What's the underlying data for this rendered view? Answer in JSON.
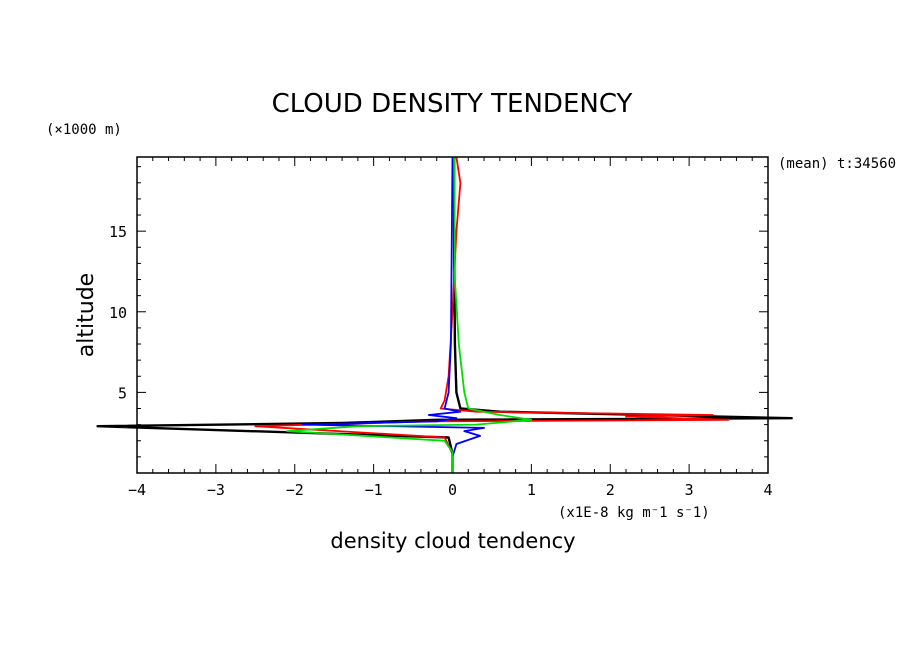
{
  "chart_data": {
    "type": "line",
    "title": "CLOUD DENSITY TENDENCY",
    "ylabel": "altitude",
    "yunit": "(×1000 m)",
    "xlabel": "density cloud tendency",
    "xunit": "(x1E-8 kg m⁻1 s⁻1)",
    "annotation": "(mean) t:34560",
    "xlim": [
      -4,
      4
    ],
    "ylim": [
      0,
      19.6
    ],
    "xticks": [
      "−4",
      "−3",
      "−2",
      "−1",
      "0",
      "1",
      "2",
      "3",
      "4"
    ],
    "yticks": [
      "5",
      "10",
      "15"
    ],
    "grid": false,
    "series": [
      {
        "color": "#000000",
        "points": [
          [
            0,
            0
          ],
          [
            0,
            1.2
          ],
          [
            -0.05,
            2.2
          ],
          [
            -4.5,
            2.9
          ],
          [
            -1.4,
            3.1
          ],
          [
            -0.2,
            3.3
          ],
          [
            4.3,
            3.4
          ],
          [
            0.6,
            3.8
          ],
          [
            0.1,
            4.0
          ],
          [
            0.05,
            5.0
          ],
          [
            0.03,
            8.0
          ],
          [
            0.02,
            15.0
          ],
          [
            0.02,
            19.6
          ]
        ]
      },
      {
        "color": "#ff0000",
        "points": [
          [
            0,
            0
          ],
          [
            0,
            1.2
          ],
          [
            -0.1,
            2.2
          ],
          [
            -2.5,
            2.9
          ],
          [
            -1.0,
            3.1
          ],
          [
            -0.3,
            3.2
          ],
          [
            3.5,
            3.3
          ],
          [
            2.2,
            3.5
          ],
          [
            3.3,
            3.6
          ],
          [
            0.3,
            3.8
          ],
          [
            -0.15,
            4.0
          ],
          [
            -0.1,
            4.5
          ],
          [
            -0.05,
            6.0
          ],
          [
            0.0,
            10.0
          ],
          [
            0.05,
            15.0
          ],
          [
            0.1,
            18.0
          ],
          [
            0.05,
            19.6
          ]
        ]
      },
      {
        "color": "#0000ff",
        "points": [
          [
            0,
            0
          ],
          [
            0,
            1.0
          ],
          [
            0.05,
            1.8
          ],
          [
            0.35,
            2.3
          ],
          [
            0.15,
            2.6
          ],
          [
            0.4,
            2.8
          ],
          [
            -1.9,
            3.0
          ],
          [
            -0.2,
            3.2
          ],
          [
            0.05,
            3.4
          ],
          [
            -0.3,
            3.6
          ],
          [
            0.1,
            3.8
          ],
          [
            -0.1,
            4.0
          ],
          [
            -0.05,
            5.0
          ],
          [
            -0.02,
            8.0
          ],
          [
            0.0,
            19.6
          ]
        ]
      },
      {
        "color": "#00dd00",
        "points": [
          [
            0,
            0
          ],
          [
            0,
            1.3
          ],
          [
            -0.1,
            2.0
          ],
          [
            -2.1,
            2.6
          ],
          [
            -1.2,
            2.9
          ],
          [
            0.3,
            3.0
          ],
          [
            1.0,
            3.3
          ],
          [
            0.6,
            3.6
          ],
          [
            0.2,
            4.0
          ],
          [
            0.15,
            5.0
          ],
          [
            0.08,
            8.0
          ],
          [
            0.03,
            12.0
          ],
          [
            0.02,
            19.6
          ]
        ]
      }
    ]
  }
}
